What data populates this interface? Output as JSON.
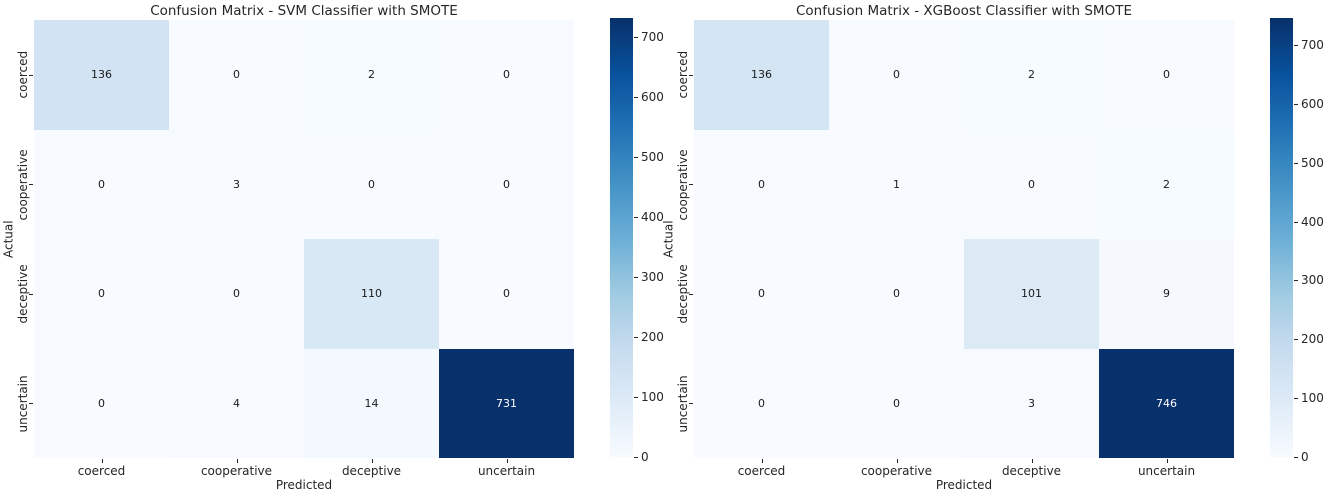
{
  "figure": {
    "background": "#ffffff",
    "text_color": "#262626",
    "colormap": "Blues",
    "colormap_min_color": "#f7fbff",
    "colormap_max_color": "#08306b"
  },
  "chart_data": [
    {
      "type": "heatmap",
      "title": "Confusion Matrix - SVM Classifier with SMOTE",
      "xlabel": "Predicted",
      "ylabel": "Actual",
      "x_categories": [
        "coerced",
        "cooperative",
        "deceptive",
        "uncertain"
      ],
      "y_categories": [
        "coerced",
        "cooperative",
        "deceptive",
        "uncertain"
      ],
      "values": [
        [
          136,
          0,
          2,
          0
        ],
        [
          0,
          3,
          0,
          0
        ],
        [
          0,
          0,
          110,
          0
        ],
        [
          0,
          4,
          14,
          731
        ]
      ],
      "vmin": 0,
      "vmax": 731,
      "colormap": "Blues",
      "colorbar_ticks": [
        0,
        100,
        200,
        300,
        400,
        500,
        600,
        700
      ],
      "colorbar_position": "right",
      "grid": false
    },
    {
      "type": "heatmap",
      "title": "Confusion Matrix - XGBoost Classifier with SMOTE",
      "xlabel": "Predicted",
      "ylabel": "Actual",
      "x_categories": [
        "coerced",
        "cooperative",
        "deceptive",
        "uncertain"
      ],
      "y_categories": [
        "coerced",
        "cooperative",
        "deceptive",
        "uncertain"
      ],
      "values": [
        [
          136,
          0,
          2,
          0
        ],
        [
          0,
          1,
          0,
          2
        ],
        [
          0,
          0,
          101,
          9
        ],
        [
          0,
          0,
          3,
          746
        ]
      ],
      "vmin": 0,
      "vmax": 746,
      "colormap": "Blues",
      "colorbar_ticks": [
        0,
        100,
        200,
        300,
        400,
        500,
        600,
        700
      ],
      "colorbar_position": "right",
      "grid": false
    }
  ]
}
